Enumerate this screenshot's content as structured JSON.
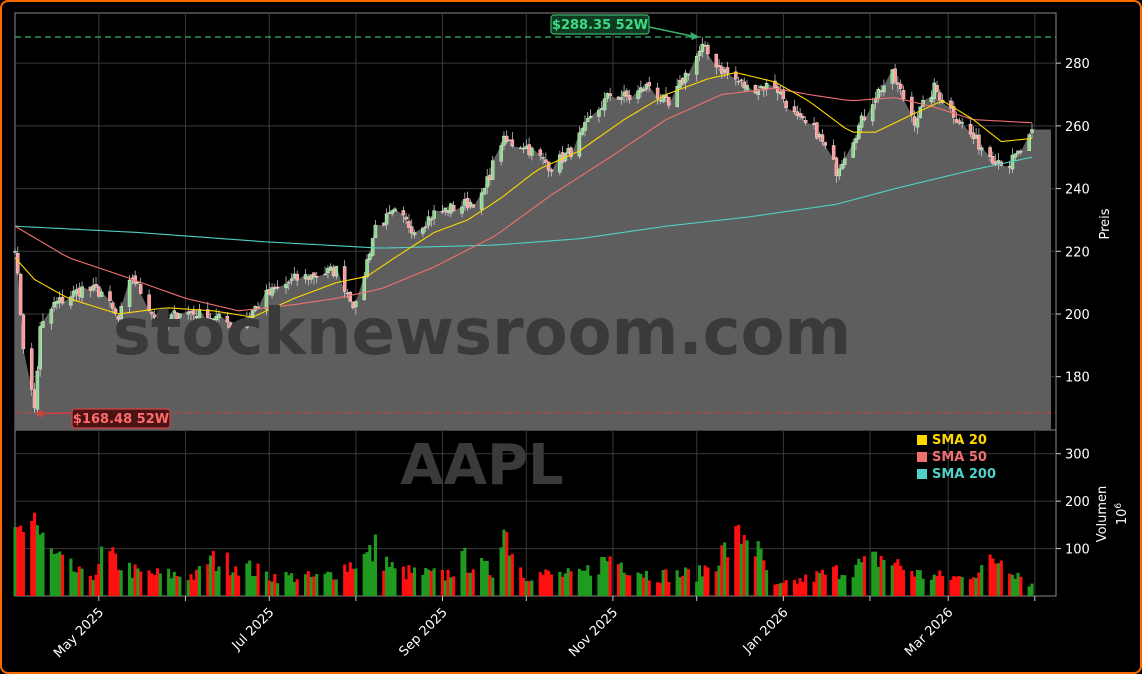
{
  "chart_data": {
    "type": "line",
    "ticker": "AAPL",
    "watermark": "stocknewsroom.com",
    "ylabel_price": "Preis",
    "ylabel_volume": "Volumen",
    "volume_multiplier": "10",
    "volume_multiplier_exp": "6",
    "price_ylim": [
      163,
      296
    ],
    "price_yticks": [
      180,
      200,
      220,
      240,
      260,
      280
    ],
    "volume_ylim": [
      0,
      350
    ],
    "volume_yticks": [
      100,
      200,
      300
    ],
    "date_start": "2025-04-01",
    "date_end": "2026-03-31",
    "x_tick_labels": [
      "May 2025",
      "Jul 2025",
      "Sep 2025",
      "Nov 2025",
      "Jan 2026",
      "Mar 2026"
    ],
    "x_tick_dates": [
      "2025-05-01",
      "2025-07-01",
      "2025-09-01",
      "2025-11-01",
      "2026-01-01",
      "2026-03-01"
    ],
    "high_52w": {
      "value": 288.35,
      "label": "$288.35 52W",
      "date": "2025-12-02"
    },
    "low_52w": {
      "value": 168.48,
      "label": "$168.48 52W",
      "date": "2025-04-08"
    },
    "legend": [
      {
        "label": "SMA 20",
        "color": "#ffd700"
      },
      {
        "label": "SMA 50",
        "color": "#f07070"
      },
      {
        "label": "SMA 200",
        "color": "#4fd1c5"
      }
    ],
    "close_keypoints": [
      [
        "2025-04-01",
        222
      ],
      [
        "2025-04-04",
        190
      ],
      [
        "2025-04-08",
        170
      ],
      [
        "2025-04-10",
        195
      ],
      [
        "2025-04-15",
        203
      ],
      [
        "2025-04-25",
        208
      ],
      [
        "2025-05-02",
        207
      ],
      [
        "2025-05-08",
        198
      ],
      [
        "2025-05-13",
        212
      ],
      [
        "2025-05-23",
        196
      ],
      [
        "2025-05-30",
        201
      ],
      [
        "2025-06-11",
        199
      ],
      [
        "2025-06-20",
        196
      ],
      [
        "2025-06-30",
        206
      ],
      [
        "2025-07-10",
        211
      ],
      [
        "2025-07-25",
        214
      ],
      [
        "2025-08-01",
        202
      ],
      [
        "2025-08-08",
        228
      ],
      [
        "2025-08-15",
        232
      ],
      [
        "2025-08-22",
        227
      ],
      [
        "2025-08-29",
        232
      ],
      [
        "2025-09-09",
        235
      ],
      [
        "2025-09-15",
        237
      ],
      [
        "2025-09-22",
        255
      ],
      [
        "2025-09-30",
        254
      ],
      [
        "2025-10-10",
        247
      ],
      [
        "2025-10-17",
        252
      ],
      [
        "2025-10-24",
        262
      ],
      [
        "2025-10-31",
        270
      ],
      [
        "2025-11-07",
        269
      ],
      [
        "2025-11-14",
        273
      ],
      [
        "2025-11-21",
        266
      ],
      [
        "2025-11-28",
        278
      ],
      [
        "2025-12-03",
        285
      ],
      [
        "2025-12-10",
        278
      ],
      [
        "2025-12-19",
        272
      ],
      [
        "2025-12-29",
        273
      ],
      [
        "2026-01-06",
        262
      ],
      [
        "2026-01-13",
        258
      ],
      [
        "2026-01-20",
        246
      ],
      [
        "2026-01-27",
        258
      ],
      [
        "2026-02-03",
        270
      ],
      [
        "2026-02-09",
        276
      ],
      [
        "2026-02-17",
        262
      ],
      [
        "2026-02-24",
        272
      ],
      [
        "2026-03-03",
        264
      ],
      [
        "2026-03-10",
        256
      ],
      [
        "2026-03-17",
        250
      ],
      [
        "2026-03-23",
        248
      ],
      [
        "2026-03-27",
        252
      ],
      [
        "2026-03-31",
        257
      ]
    ],
    "sma20": [
      [
        "2025-04-01",
        218
      ],
      [
        "2025-04-08",
        211
      ],
      [
        "2025-04-20",
        205
      ],
      [
        "2025-05-08",
        200
      ],
      [
        "2025-05-25",
        202
      ],
      [
        "2025-06-11",
        201
      ],
      [
        "2025-06-25",
        199
      ],
      [
        "2025-07-10",
        205
      ],
      [
        "2025-07-25",
        210
      ],
      [
        "2025-08-05",
        212
      ],
      [
        "2025-08-15",
        218
      ],
      [
        "2025-08-29",
        226
      ],
      [
        "2025-09-10",
        230
      ],
      [
        "2025-09-22",
        237
      ],
      [
        "2025-10-05",
        246
      ],
      [
        "2025-10-20",
        252
      ],
      [
        "2025-11-05",
        262
      ],
      [
        "2025-11-20",
        270
      ],
      [
        "2025-12-05",
        275
      ],
      [
        "2025-12-15",
        277
      ],
      [
        "2025-12-29",
        274
      ],
      [
        "2026-01-10",
        268
      ],
      [
        "2026-01-25",
        258
      ],
      [
        "2026-02-03",
        258
      ],
      [
        "2026-02-17",
        264
      ],
      [
        "2026-02-27",
        268
      ],
      [
        "2026-03-10",
        262
      ],
      [
        "2026-03-20",
        255
      ],
      [
        "2026-03-31",
        256
      ]
    ],
    "sma50": [
      [
        "2025-04-01",
        228
      ],
      [
        "2025-04-20",
        218
      ],
      [
        "2025-05-10",
        212
      ],
      [
        "2025-06-01",
        205
      ],
      [
        "2025-06-20",
        201
      ],
      [
        "2025-07-10",
        203
      ],
      [
        "2025-07-25",
        205
      ],
      [
        "2025-08-10",
        208
      ],
      [
        "2025-08-29",
        215
      ],
      [
        "2025-09-20",
        225
      ],
      [
        "2025-10-10",
        238
      ],
      [
        "2025-10-31",
        250
      ],
      [
        "2025-11-20",
        262
      ],
      [
        "2025-12-10",
        270
      ],
      [
        "2025-12-29",
        272
      ],
      [
        "2026-01-10",
        270
      ],
      [
        "2026-01-25",
        268
      ],
      [
        "2026-02-10",
        269
      ],
      [
        "2026-02-24",
        266
      ],
      [
        "2026-03-10",
        262
      ],
      [
        "2026-03-31",
        261
      ]
    ],
    "sma200": [
      [
        "2025-04-01",
        228
      ],
      [
        "2025-05-15",
        226
      ],
      [
        "2025-06-30",
        223
      ],
      [
        "2025-08-10",
        221
      ],
      [
        "2025-09-20",
        222
      ],
      [
        "2025-10-20",
        224
      ],
      [
        "2025-11-20",
        228
      ],
      [
        "2025-12-20",
        231
      ],
      [
        "2026-01-20",
        235
      ],
      [
        "2026-02-10",
        240
      ],
      [
        "2026-03-10",
        246
      ],
      [
        "2026-03-31",
        250
      ]
    ],
    "volume_keypoints": [
      [
        "2025-04-01",
        125
      ],
      [
        "2025-04-04",
        160
      ],
      [
        "2025-04-08",
        185
      ],
      [
        "2025-04-10",
        130
      ],
      [
        "2025-04-15",
        85
      ],
      [
        "2025-04-25",
        45
      ],
      [
        "2025-05-01",
        55
      ],
      [
        "2025-05-02",
        95
      ],
      [
        "2025-05-15",
        50
      ],
      [
        "2025-06-05",
        45
      ],
      [
        "2025-06-09",
        80
      ],
      [
        "2025-06-20",
        70
      ],
      [
        "2025-07-01",
        45
      ],
      [
        "2025-07-20",
        40
      ],
      [
        "2025-08-07",
        95
      ],
      [
        "2025-08-08",
        105
      ],
      [
        "2025-08-15",
        55
      ],
      [
        "2025-09-02",
        45
      ],
      [
        "2025-09-09",
        80
      ],
      [
        "2025-09-20",
        50
      ],
      [
        "2025-09-22",
        165
      ],
      [
        "2025-09-30",
        50
      ],
      [
        "2025-10-20",
        45
      ],
      [
        "2025-10-31",
        85
      ],
      [
        "2025-11-15",
        45
      ],
      [
        "2025-12-02",
        50
      ],
      [
        "2025-12-19",
        145
      ],
      [
        "2025-12-29",
        20
      ],
      [
        "2026-01-20",
        55
      ],
      [
        "2026-01-30",
        70
      ],
      [
        "2026-02-05",
        85
      ],
      [
        "2026-02-20",
        45
      ],
      [
        "2026-03-06",
        40
      ],
      [
        "2026-03-20",
        85
      ],
      [
        "2026-03-31",
        25
      ]
    ]
  }
}
